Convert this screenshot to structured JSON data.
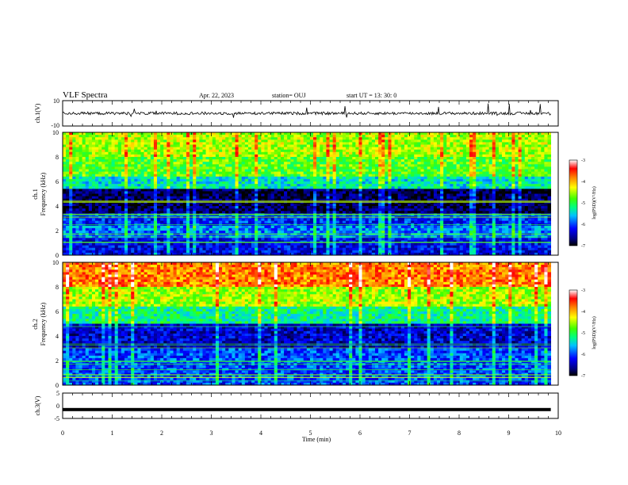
{
  "header": {
    "title": "VLF Spectra",
    "date": "Apr. 22, 2023",
    "station": "station= OUJ",
    "start": "start  UT  =   13: 30: 0"
  },
  "chart_data": [
    {
      "type": "line",
      "ylabel": "ch.1(V)",
      "ylim": [
        -10,
        10
      ],
      "ytick_labels": [
        "10",
        "-10"
      ],
      "baseline": 0,
      "color": "#000000"
    },
    {
      "type": "heatmap",
      "ylabel_top": "ch.1",
      "ylabel": "Frequency (kHz)",
      "ylim": [
        0,
        10
      ],
      "ytick_labels": [
        "0",
        "2",
        "4",
        "6",
        "8",
        "10"
      ],
      "colorbar": {
        "label": "log(PSD)(V²/Hz)",
        "range": [
          -7,
          -3
        ],
        "tick_labels": [
          "-3",
          "-4",
          "-5",
          "-6",
          "-7"
        ]
      },
      "band_levels": [
        {
          "from": 0,
          "to": 1.5,
          "level": 0.18
        },
        {
          "from": 1.5,
          "to": 2.5,
          "level": 0.3
        },
        {
          "from": 2.5,
          "to": 3.5,
          "level": 0.22
        },
        {
          "from": 3.5,
          "to": 5.5,
          "level": 0.05
        },
        {
          "from": 5.5,
          "to": 6.5,
          "level": 0.4
        },
        {
          "from": 6.5,
          "to": 8.0,
          "level": 0.55
        },
        {
          "from": 8.0,
          "to": 10,
          "level": 0.62
        }
      ]
    },
    {
      "type": "heatmap",
      "ylabel_top": "ch.2",
      "ylabel": "Frequency (kHz)",
      "ylim": [
        0,
        10
      ],
      "ytick_labels": [
        "0",
        "2",
        "4",
        "6",
        "8",
        "10"
      ],
      "colorbar": {
        "label": "log(PSD)(V²/Hz)",
        "range": [
          -7,
          -3
        ],
        "tick_labels": [
          "-3",
          "-4",
          "-5",
          "-6",
          "-7"
        ]
      },
      "band_levels": [
        {
          "from": 0,
          "to": 3,
          "level": 0.25
        },
        {
          "from": 3,
          "to": 5,
          "level": 0.15
        },
        {
          "from": 5,
          "to": 6.5,
          "level": 0.45
        },
        {
          "from": 6.5,
          "to": 8,
          "level": 0.62
        },
        {
          "from": 8,
          "to": 10,
          "level": 0.8
        }
      ]
    },
    {
      "type": "line",
      "ylabel": "ch.3(V)",
      "ylim": [
        -5,
        5
      ],
      "ytick_labels": [
        "5",
        "0",
        "-5"
      ],
      "value": -1.5,
      "color": "#000000"
    }
  ],
  "x_axis": {
    "label": "Time  (min)",
    "xlim": [
      0,
      10
    ],
    "tick_labels": [
      "0",
      "1",
      "2",
      "3",
      "4",
      "5",
      "6",
      "7",
      "8",
      "9",
      "10"
    ],
    "data_end": 9.85
  }
}
